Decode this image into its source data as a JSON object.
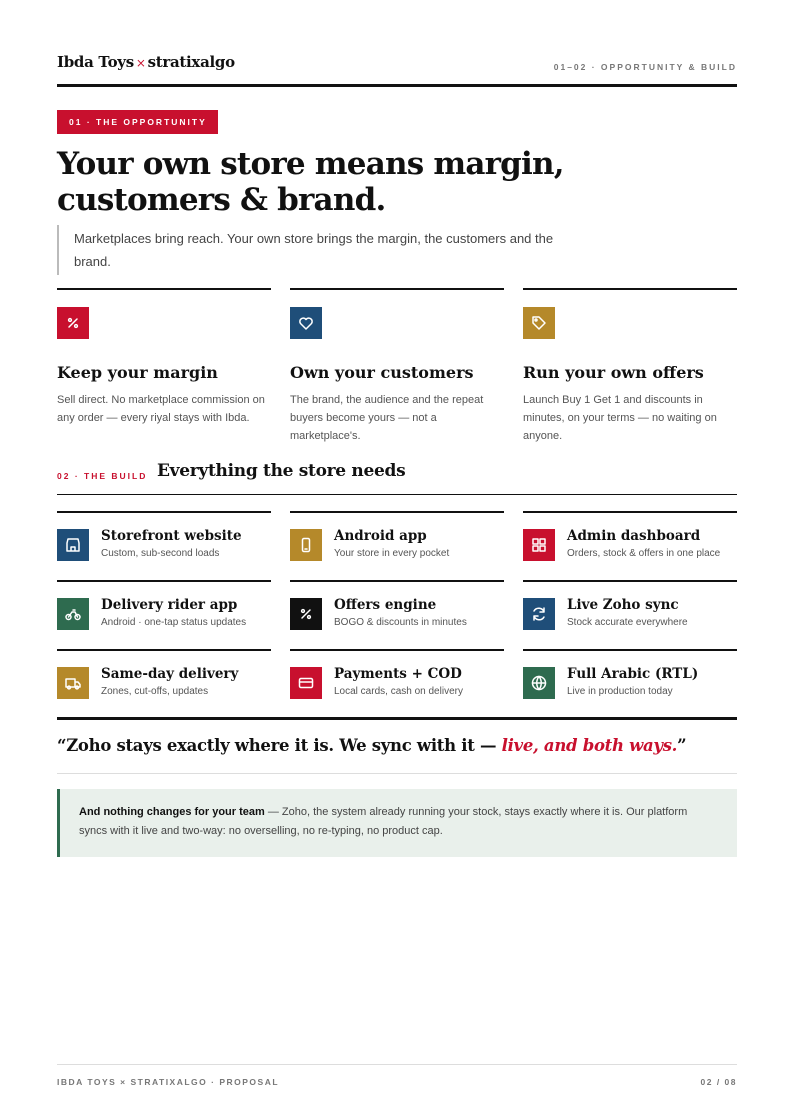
{
  "header": {
    "brand": "Ibda Toys",
    "separator": "×",
    "partner": "stratixalgo",
    "section": "01–02 · OPPORTUNITY & BUILD"
  },
  "opportunity": {
    "badge": "01 · THE OPPORTUNITY",
    "title_lines": [
      "Your own store means margin,",
      "customers & brand."
    ],
    "lead": "Marketplaces bring reach. Your own store brings the margin, the customers and the brand.",
    "cards": [
      {
        "title": "Keep your margin",
        "text": "Sell direct. No marketplace commission on any order — every riyal stays with Ibda."
      },
      {
        "title": "Own your customers",
        "text": "The brand, the audience and the repeat buyers become yours — not a marketplace's."
      },
      {
        "title": "Run your own offers",
        "text": "Launch Buy 1 Get 1 and discounts in minutes, on your terms — no waiting on anyone."
      }
    ]
  },
  "build": {
    "badge": "02 · THE BUILD",
    "title": "Everything the store needs",
    "features": [
      {
        "title": "Storefront website",
        "subtitle": "Custom, sub-second loads"
      },
      {
        "title": "Android app",
        "subtitle": "Your store in every pocket"
      },
      {
        "title": "Admin dashboard",
        "subtitle": "Orders, stock & offers in one place"
      },
      {
        "title": "Delivery rider app",
        "subtitle": "Android · one-tap status updates"
      },
      {
        "title": "Offers engine",
        "subtitle": "BOGO & discounts in minutes"
      },
      {
        "title": "Live Zoho sync",
        "subtitle": "Stock accurate everywhere"
      },
      {
        "title": "Same-day delivery",
        "subtitle": "Zones, cut-offs, updates"
      },
      {
        "title": "Payments + COD",
        "subtitle": "Local cards, cash on delivery"
      },
      {
        "title": "Full Arabic (RTL)",
        "subtitle": "Live in production today"
      }
    ]
  },
  "quote": {
    "open": "“Zoho stays exactly where it is. We sync with it — ",
    "emphasis": "live, and both ways.",
    "close": "”"
  },
  "note": {
    "strong": "And nothing changes for your team",
    "text": " — Zoho, the system already running your stock, stays exactly where it is. Our platform syncs with it live and two-way: no overselling, no re-typing, no product cap."
  },
  "footer": {
    "left": "IBDA TOYS × STRATIXALGO · PROPOSAL",
    "right": "02 / 08"
  }
}
